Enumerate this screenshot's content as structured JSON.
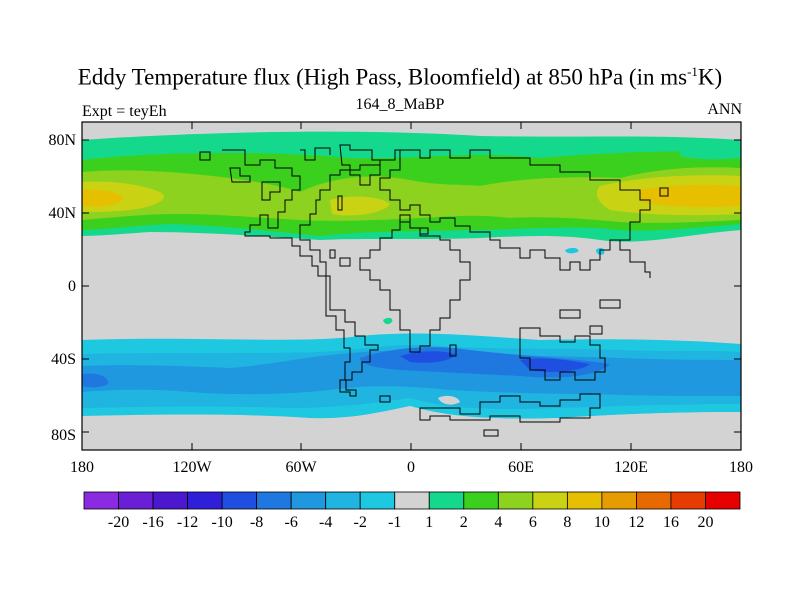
{
  "title": {
    "prefix": "Eddy Temperature flux (High Pass, Bloomfield) at 850 hPa (in ms",
    "superscript": "-1",
    "suffix": "K)"
  },
  "left_label": "Expt = teyEh",
  "center_label": "164_8_MaBP",
  "right_label": "ANN",
  "map": {
    "lat_ticks": [
      "80N",
      "40N",
      "0",
      "40S",
      "80S"
    ],
    "lon_ticks": [
      "180",
      "120W",
      "60W",
      "0",
      "60E",
      "120E",
      "180"
    ]
  },
  "colorbar": {
    "labels": [
      "-20",
      "-16",
      "-12",
      "-10",
      "-8",
      "-6",
      "-4",
      "-2",
      "-1",
      "1",
      "2",
      "4",
      "6",
      "8",
      "10",
      "12",
      "16",
      "20"
    ],
    "colors": [
      "#8a2be2",
      "#6a1fd6",
      "#4b18d0",
      "#2f1fd8",
      "#1f4fe0",
      "#1f78e0",
      "#1f98e0",
      "#20b4e0",
      "#1ec8e0",
      "#d3d3d3",
      "#14d88c",
      "#3cd01e",
      "#8cd21e",
      "#cad214",
      "#e6c000",
      "#e69c00",
      "#e66a00",
      "#e63c00",
      "#e60000"
    ]
  }
}
